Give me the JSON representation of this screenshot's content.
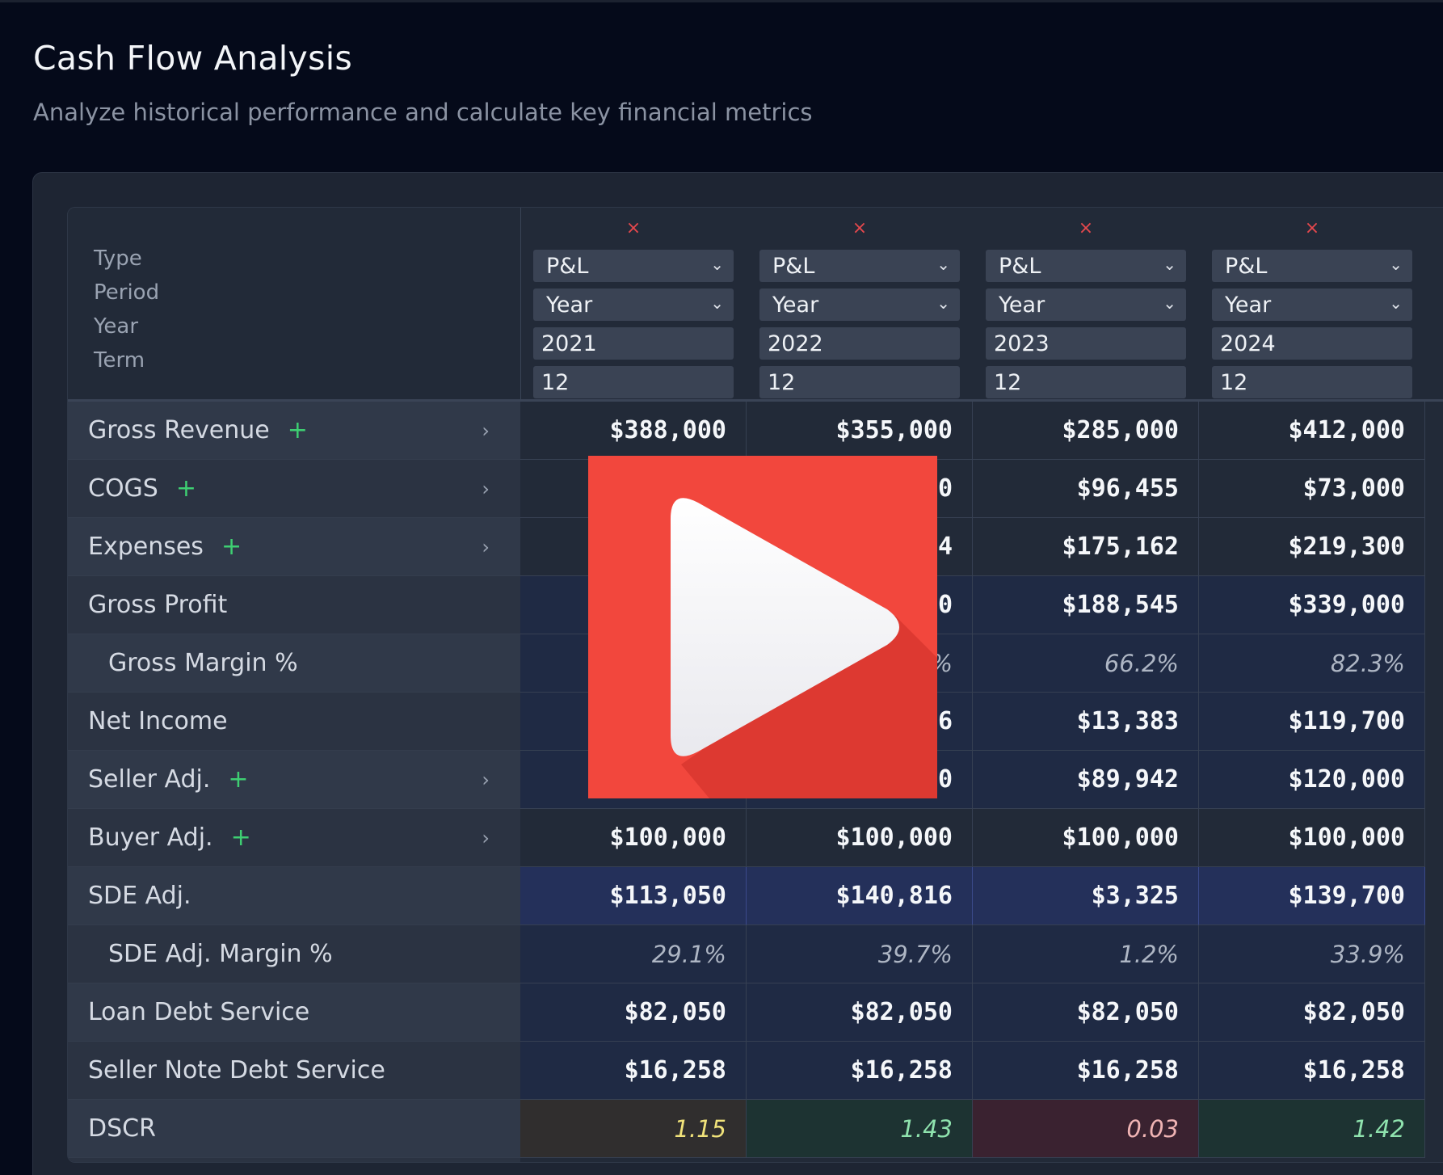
{
  "page": {
    "title": "Cash Flow Analysis",
    "subtitle": "Analyze historical performance and calculate key financial metrics"
  },
  "header_labels": {
    "type": "Type",
    "period": "Period",
    "year": "Year",
    "term": "Term"
  },
  "columns": [
    {
      "close": "×",
      "type": "P&L",
      "period": "Year",
      "year": "2021",
      "term": "12"
    },
    {
      "close": "×",
      "type": "P&L",
      "period": "Year",
      "year": "2022",
      "term": "12"
    },
    {
      "close": "×",
      "type": "P&L",
      "period": "Year",
      "year": "2023",
      "term": "12"
    },
    {
      "close": "×",
      "type": "P&L",
      "period": "Year",
      "year": "2024",
      "term": "12"
    }
  ],
  "rows": [
    {
      "label": "Gross Revenue",
      "plus": "+",
      "chevron": "›",
      "values": [
        "$388,000",
        "$355,000",
        "$285,000",
        "$412,000"
      ]
    },
    {
      "label": "COGS",
      "plus": "+",
      "chevron": "›",
      "values": [
        "",
        "0",
        "$96,455",
        "$73,000"
      ]
    },
    {
      "label": "Expenses",
      "plus": "+",
      "chevron": "›",
      "values": [
        "",
        "4",
        "$175,162",
        "$219,300"
      ]
    },
    {
      "label": "Gross Profit",
      "values": [
        "",
        "0",
        "$188,545",
        "$339,000"
      ]
    },
    {
      "label": "Gross Margin %",
      "values": [
        "",
        "%",
        "66.2%",
        "82.3%"
      ]
    },
    {
      "label": "Net Income",
      "values": [
        "",
        "6",
        "$13,383",
        "$119,700"
      ]
    },
    {
      "label": "Seller Adj.",
      "plus": "+",
      "chevron": "›",
      "values": [
        "",
        "0",
        "$89,942",
        "$120,000"
      ]
    },
    {
      "label": "Buyer Adj.",
      "plus": "+",
      "chevron": "›",
      "values": [
        "$100,000",
        "$100,000",
        "$100,000",
        "$100,000"
      ]
    },
    {
      "label": "SDE Adj.",
      "values": [
        "$113,050",
        "$140,816",
        "$3,325",
        "$139,700"
      ]
    },
    {
      "label": "SDE Adj. Margin %",
      "values": [
        "29.1%",
        "39.7%",
        "1.2%",
        "33.9%"
      ]
    },
    {
      "label": "Loan Debt Service",
      "values": [
        "$82,050",
        "$82,050",
        "$82,050",
        "$82,050"
      ]
    },
    {
      "label": "Seller Note Debt Service",
      "values": [
        "$16,258",
        "$16,258",
        "$16,258",
        "$16,258"
      ]
    },
    {
      "label": "DSCR",
      "values": [
        "1.15",
        "1.43",
        "0.03",
        "1.42"
      ]
    }
  ],
  "colors": {
    "dscr_warn": "#f0e27a",
    "dscr_good": "#8fe3ae",
    "dscr_bad": "#f0b4b4",
    "play_overlay": "#f2473d"
  },
  "icons": {
    "play": "play-icon"
  }
}
